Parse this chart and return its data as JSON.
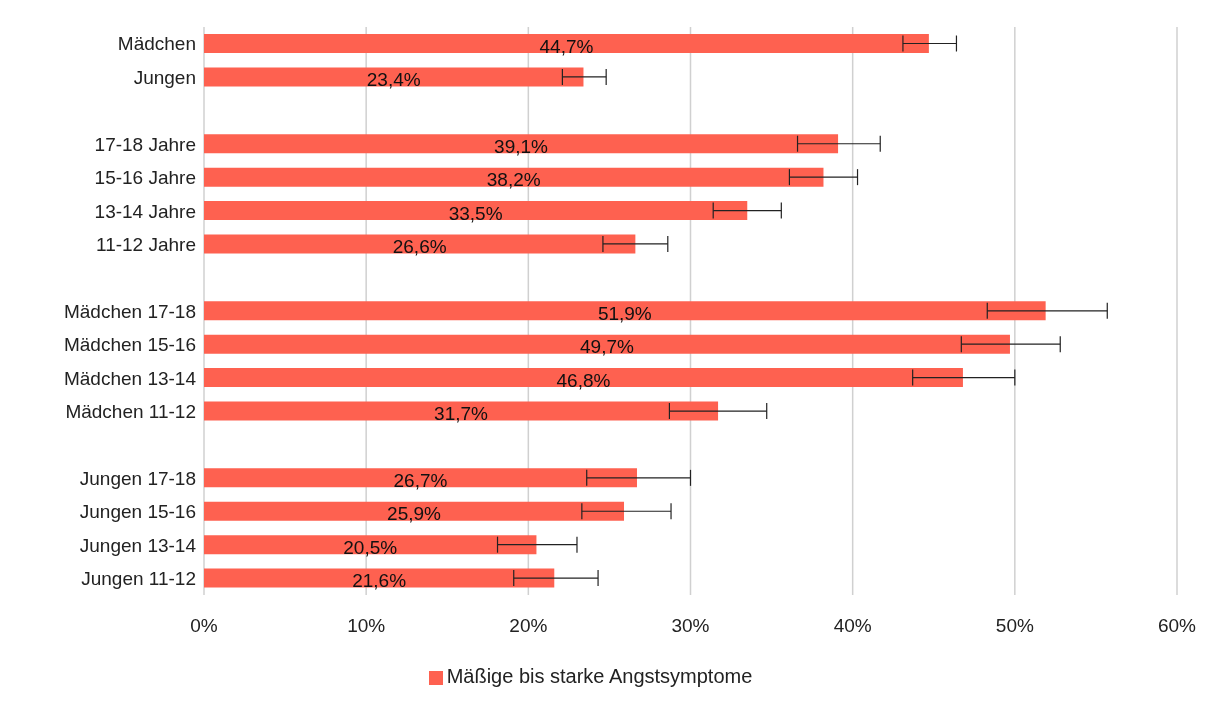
{
  "chart_data": {
    "type": "bar",
    "orientation": "horizontal",
    "categories": [
      "Mädchen",
      "Jungen",
      null,
      "17-18 Jahre",
      "15-16 Jahre",
      "13-14 Jahre",
      "11-12 Jahre",
      null,
      "Mädchen 17-18",
      "Mädchen 15-16",
      "Mädchen 13-14",
      "Mädchen 11-12",
      null,
      "Jungen 17-18",
      "Jungen 15-16",
      "Jungen 13-14",
      "Jungen 11-12"
    ],
    "series": [
      {
        "name": "Mäßige bis starke Angstsymptome",
        "color": "#fe6150",
        "values": [
          44.7,
          23.4,
          null,
          39.1,
          38.2,
          33.5,
          26.6,
          null,
          51.9,
          49.7,
          46.8,
          31.7,
          null,
          26.7,
          25.9,
          20.5,
          21.6
        ],
        "errors": [
          [
            43.1,
            46.4
          ],
          [
            22.1,
            24.8
          ],
          null,
          [
            36.6,
            41.7
          ],
          [
            36.1,
            40.3
          ],
          [
            31.4,
            35.6
          ],
          [
            24.6,
            28.6
          ],
          null,
          [
            48.3,
            55.7
          ],
          [
            46.7,
            52.8
          ],
          [
            43.7,
            50.0
          ],
          [
            28.7,
            34.7
          ],
          null,
          [
            23.6,
            30.0
          ],
          [
            23.3,
            28.8
          ],
          [
            18.1,
            23.0
          ],
          [
            19.1,
            24.3
          ]
        ],
        "value_labels": [
          "44,7%",
          "23,4%",
          null,
          "39,1%",
          "38,2%",
          "33,5%",
          "26,6%",
          null,
          "51,9%",
          "49,7%",
          "46,8%",
          "31,7%",
          null,
          "26,7%",
          "25,9%",
          "20,5%",
          "21,6%"
        ]
      }
    ],
    "xlim": [
      0,
      60
    ],
    "xticks": [
      {
        "value": 0,
        "label": "0%"
      },
      {
        "value": 10,
        "label": "10%"
      },
      {
        "value": 20,
        "label": "20%"
      },
      {
        "value": 30,
        "label": "30%"
      },
      {
        "value": 40,
        "label": "40%"
      },
      {
        "value": 50,
        "label": "50%"
      },
      {
        "value": 60,
        "label": "60%"
      }
    ],
    "grid": "x",
    "legend": "bottom"
  }
}
